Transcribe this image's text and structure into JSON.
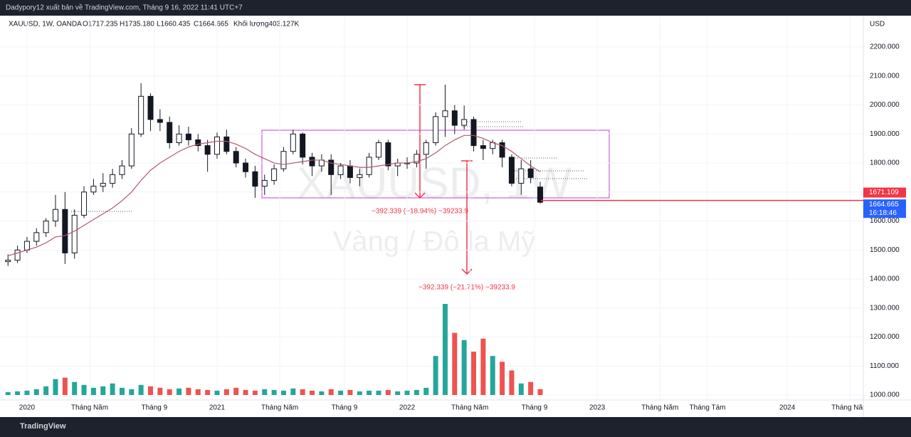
{
  "header": {
    "text": "Dadypory12 xuất bản về TradingView.com, Tháng 9 16, 2022 11:41 UTC+7"
  },
  "footer": {
    "brand": "TradingView"
  },
  "chart_data": {
    "type": "candlestick",
    "legend": {
      "symbol": "XAUUSD, 1W, OANDA",
      "open": "O1717.235",
      "high": "H1735.180",
      "low": "L1660.435",
      "close": "C1664.665",
      "volume": "Khối lượng403.127K"
    },
    "currency": "USD",
    "watermark": {
      "symbol": "XAUUSD, 1W",
      "description": "Vàng / Đô la Mỹ"
    },
    "annotations": [
      "−392.339 (−18.94%) −39233.9",
      "−392.339 (−21.71%) −39233.9"
    ],
    "countdown": "16:18:46",
    "price_labels": [
      {
        "value": 1671.109,
        "color": "#f23645"
      },
      {
        "value": 1664.665,
        "color": "#2962ff"
      }
    ],
    "ylim": [
      983,
      2308
    ],
    "yticks": [
      {
        "value": 1000,
        "label": "1000.000"
      },
      {
        "value": 1100,
        "label": "1100.000"
      },
      {
        "value": 1200,
        "label": "1200.000"
      },
      {
        "value": 1300,
        "label": "1300.000"
      },
      {
        "value": 1400,
        "label": "1400.000"
      },
      {
        "value": 1500,
        "label": "1500.000"
      },
      {
        "value": 1600,
        "label": "1600.000"
      },
      {
        "value": 1700,
        "label": "1700.000"
      },
      {
        "value": 1800,
        "label": "1800.000"
      },
      {
        "value": 1900,
        "label": "1900.000"
      },
      {
        "value": 2000,
        "label": "2000.000"
      },
      {
        "value": 2100,
        "label": "2100.000"
      },
      {
        "value": 2200,
        "label": "2200.000"
      }
    ],
    "xlim": [
      2019.858,
      2024.4
    ],
    "xticks": [
      {
        "value": 2020,
        "label": "2020"
      },
      {
        "value": 2020.33,
        "label": "Tháng Năm"
      },
      {
        "value": 2020.67,
        "label": "Tháng 9"
      },
      {
        "value": 2021,
        "label": "2021"
      },
      {
        "value": 2021.33,
        "label": "Tháng Năm"
      },
      {
        "value": 2021.67,
        "label": "Tháng 9"
      },
      {
        "value": 2022,
        "label": "2022"
      },
      {
        "value": 2022.33,
        "label": "Tháng Năm"
      },
      {
        "value": 2022.67,
        "label": "Tháng 9"
      },
      {
        "value": 2023,
        "label": "2023"
      },
      {
        "value": 2023.33,
        "label": "Tháng Năm"
      },
      {
        "value": 2023.58,
        "label": "Tháng Tám"
      },
      {
        "value": 2024,
        "label": "2024"
      },
      {
        "value": 2024.33,
        "label": "Tháng Năm"
      }
    ],
    "x": [
      2019.9,
      2019.95,
      2020,
      2020.05,
      2020.1,
      2020.15,
      2020.2,
      2020.25,
      2020.3,
      2020.35,
      2020.4,
      2020.45,
      2020.5,
      2020.55,
      2020.6,
      2020.65,
      2020.7,
      2020.75,
      2020.8,
      2020.85,
      2020.9,
      2020.95,
      2021,
      2021.05,
      2021.1,
      2021.15,
      2021.2,
      2021.25,
      2021.3,
      2021.35,
      2021.4,
      2021.45,
      2021.5,
      2021.55,
      2021.6,
      2021.65,
      2021.7,
      2021.75,
      2021.8,
      2021.85,
      2021.9,
      2021.95,
      2022,
      2022.05,
      2022.1,
      2022.15,
      2022.2,
      2022.25,
      2022.3,
      2022.35,
      2022.4,
      2022.45,
      2022.5,
      2022.55,
      2022.6,
      2022.65,
      2022.7
    ],
    "open": [
      1460,
      1465,
      1500,
      1530,
      1560,
      1600,
      1640,
      1490,
      1620,
      1700,
      1720,
      1730,
      1760,
      1790,
      1900,
      2030,
      1950,
      1940,
      1870,
      1900,
      1880,
      1860,
      1830,
      1890,
      1840,
      1800,
      1770,
      1720,
      1740,
      1780,
      1840,
      1900,
      1820,
      1790,
      1810,
      1760,
      1790,
      1750,
      1760,
      1820,
      1870,
      1790,
      1800,
      1800,
      1830,
      1870,
      1960,
      1980,
      1930,
      1950,
      1860,
      1850,
      1870,
      1820,
      1730,
      1780,
      1717.235
    ],
    "high": [
      1485,
      1515,
      1545,
      1575,
      1610,
      1690,
      1700,
      1640,
      1720,
      1745,
      1765,
      1780,
      1810,
      1920,
      2075,
      2040,
      1985,
      1960,
      1930,
      1925,
      1900,
      1880,
      1905,
      1915,
      1855,
      1815,
      1790,
      1760,
      1795,
      1855,
      1915,
      1905,
      1835,
      1830,
      1830,
      1800,
      1810,
      1780,
      1835,
      1880,
      1880,
      1815,
      1820,
      1845,
      1880,
      1975,
      2070,
      2000,
      1998,
      1960,
      1880,
      1880,
      1880,
      1830,
      1810,
      1810,
      1735.18
    ],
    "low": [
      1445,
      1455,
      1490,
      1515,
      1545,
      1580,
      1452,
      1470,
      1610,
      1690,
      1700,
      1715,
      1745,
      1780,
      1890,
      1910,
      1910,
      1850,
      1860,
      1860,
      1840,
      1770,
      1815,
      1830,
      1785,
      1750,
      1680,
      1690,
      1725,
      1770,
      1830,
      1795,
      1755,
      1770,
      1690,
      1745,
      1730,
      1720,
      1750,
      1810,
      1775,
      1755,
      1780,
      1785,
      1780,
      1860,
      1890,
      1900,
      1915,
      1840,
      1810,
      1830,
      1785,
      1720,
      1690,
      1730,
      1660.435
    ],
    "close": [
      1465,
      1500,
      1530,
      1560,
      1600,
      1640,
      1490,
      1620,
      1700,
      1720,
      1730,
      1760,
      1790,
      1900,
      2030,
      1950,
      1940,
      1870,
      1900,
      1880,
      1860,
      1830,
      1890,
      1840,
      1800,
      1770,
      1720,
      1740,
      1780,
      1840,
      1900,
      1820,
      1790,
      1810,
      1760,
      1790,
      1750,
      1760,
      1820,
      1870,
      1790,
      1800,
      1800,
      1830,
      1870,
      1960,
      1980,
      1930,
      1950,
      1860,
      1850,
      1870,
      1820,
      1730,
      1780,
      1750,
      1664.665
    ],
    "volume": [
      200,
      250,
      300,
      400,
      600,
      1100,
      1200,
      900,
      700,
      500,
      600,
      800,
      500,
      400,
      700,
      600,
      500,
      400,
      450,
      500,
      400,
      350,
      300,
      400,
      500,
      350,
      300,
      400,
      350,
      300,
      450,
      400,
      300,
      250,
      400,
      300,
      350,
      250,
      300,
      300,
      350,
      250,
      300,
      350,
      500,
      2700,
      6300,
      4300,
      3800,
      3000,
      3900,
      2700,
      2300,
      1700,
      800,
      900,
      403.127
    ],
    "ma": [
      1480,
      1490,
      1500,
      1510,
      1525,
      1545,
      1550,
      1565,
      1585,
      1605,
      1625,
      1645,
      1670,
      1700,
      1740,
      1775,
      1800,
      1820,
      1840,
      1855,
      1865,
      1870,
      1875,
      1875,
      1865,
      1850,
      1830,
      1815,
      1800,
      1795,
      1800,
      1805,
      1810,
      1810,
      1800,
      1795,
      1790,
      1785,
      1785,
      1790,
      1795,
      1800,
      1800,
      1805,
      1815,
      1835,
      1860,
      1880,
      1895,
      1895,
      1885,
      1870,
      1860,
      1840,
      1815,
      1790,
      1770
    ],
    "ma_color": "#b05a6e",
    "up_color": "#26a69a",
    "down_color": "#ef5350"
  }
}
